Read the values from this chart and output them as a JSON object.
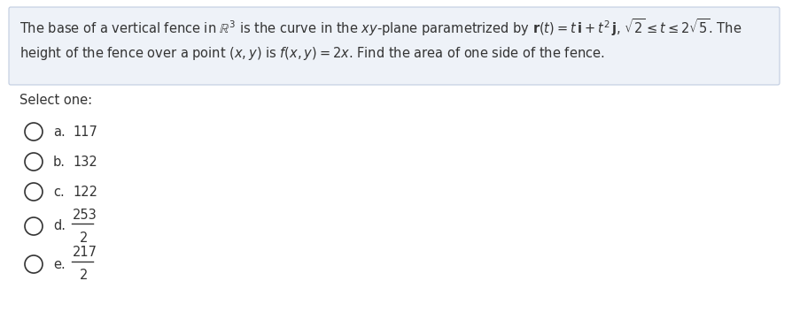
{
  "bg_color": "#ffffff",
  "box_bg_color": "#eef2f8",
  "box_edge_color": "#c0cce0",
  "text_color": "#333333",
  "figsize": [
    8.94,
    3.61
  ],
  "dpi": 100,
  "select_one": "Select one:",
  "options": [
    {
      "label": "a.",
      "text": "117",
      "is_fraction": false
    },
    {
      "label": "b.",
      "text": "132",
      "is_fraction": false
    },
    {
      "label": "c.",
      "text": "122",
      "is_fraction": false
    },
    {
      "label": "d.",
      "numerator": "253",
      "denominator": "2",
      "is_fraction": true
    },
    {
      "label": "e.",
      "numerator": "217",
      "denominator": "2",
      "is_fraction": true
    }
  ]
}
